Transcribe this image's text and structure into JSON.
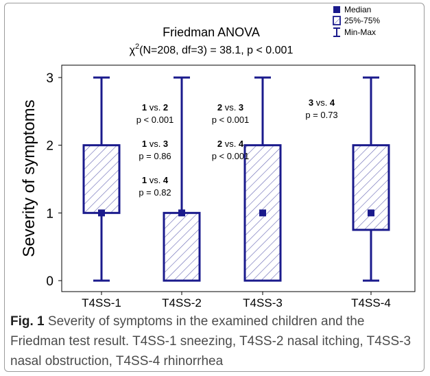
{
  "chart_data": {
    "type": "boxplot",
    "title": "Friedman ANOVA",
    "subtitle_prefix": "χ",
    "subtitle_sup": "2",
    "subtitle_rest": "(N=208, df=3) = 38.1, p < 0.001",
    "ylabel": "Severity of symptoms",
    "xlabel": "",
    "ylim": [
      0,
      3
    ],
    "yticks": [
      0,
      1,
      2,
      3
    ],
    "categories": [
      "T4SS-1",
      "T4SS-2",
      "T4SS-3",
      "T4SS-4"
    ],
    "series": [
      {
        "category": "T4SS-1",
        "min": 0,
        "q1": 1,
        "median": 1,
        "q3": 2,
        "max": 3
      },
      {
        "category": "T4SS-2",
        "min": 0,
        "q1": 0,
        "median": 1,
        "q3": 1,
        "max": 3
      },
      {
        "category": "T4SS-3",
        "min": 0,
        "q1": 0,
        "median": 1,
        "q3": 2,
        "max": 3
      },
      {
        "category": "T4SS-4",
        "min": 0,
        "q1": 0.75,
        "median": 1,
        "q3": 2,
        "max": 3
      }
    ],
    "legend": {
      "placement": "top-right",
      "items": [
        {
          "symbol": "square",
          "label": "Median"
        },
        {
          "symbol": "hatched-box",
          "label": "25%-75%"
        },
        {
          "symbol": "whisker",
          "label": "Min-Max"
        }
      ]
    },
    "annotations": [
      {
        "a": "1",
        "b": "2",
        "p": "p < 0.001"
      },
      {
        "a": "1",
        "b": "3",
        "p": "p = 0.86"
      },
      {
        "a": "1",
        "b": "4",
        "p": "p = 0.82"
      },
      {
        "a": "2",
        "b": "3",
        "p": "p < 0.001"
      },
      {
        "a": "2",
        "b": "4",
        "p": "p < 0.001"
      },
      {
        "a": "3",
        "b": "4",
        "p": "p = 0.73"
      }
    ],
    "vs_word": "vs.",
    "grid": false,
    "colors": {
      "box": "#1a1a8c",
      "hatch": "#6f6fb8",
      "text": "#000000"
    }
  },
  "caption": {
    "label": "Fig. 1",
    "text": "Severity of symptoms in the examined children and the Friedman test result. T4SS-1 sneezing, T4SS-2 nasal itching, T4SS-3 nasal obstruction, T4SS-4 rhinorrhea"
  }
}
